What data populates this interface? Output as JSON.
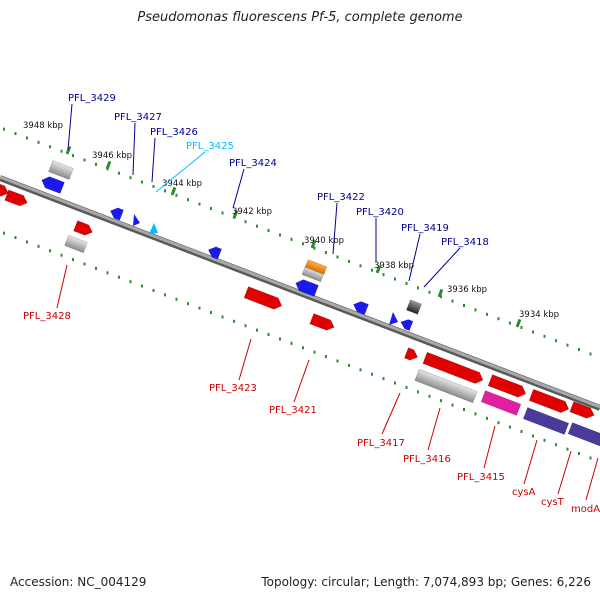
{
  "title": "Pseudomonas fluorescens Pf-5, complete genome",
  "accession_text": "Accession: NC_004129",
  "summary_text": "Topology: circular; Length: 7,074,893 bp; Genes: 6,226",
  "colors": {
    "backbone": "#808080",
    "tick": "#2e8b2e",
    "forward_label": "#00008b",
    "highlight_label": "#00bfff",
    "reverse_label": "#cc0000",
    "gene_red": "#e00000",
    "gene_blue": "#1a1aee",
    "gene_gray": "#b8b8b8",
    "gene_orange": "#f08000",
    "gene_dark": "#444444",
    "gene_magenta": "#e020a0",
    "gene_purple": "#4a3a9a"
  },
  "scale_labels": [
    "3948 kbp",
    "3946 kbp",
    "3944 kbp",
    "3942 kbp",
    "3940 kbp",
    "3938 kbp",
    "3936 kbp",
    "3934 kbp"
  ],
  "forward_labels": [
    "PFL_3429",
    "PFL_3427",
    "PFL_3426",
    "PFL_3425",
    "PFL_3424",
    "PFL_3422",
    "PFL_3420",
    "PFL_3419",
    "PFL_3418"
  ],
  "reverse_labels": [
    "PFL_3428",
    "PFL_3423",
    "PFL_3421",
    "PFL_3417",
    "PFL_3416",
    "PFL_3415",
    "cysA",
    "cysT",
    "modA"
  ]
}
